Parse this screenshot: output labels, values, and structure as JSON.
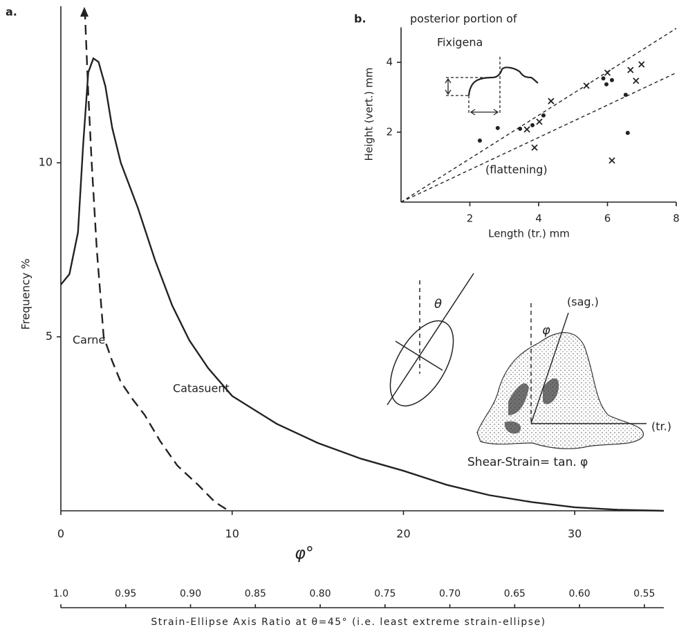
{
  "chart_data": [
    {
      "type": "line",
      "panel": "a.",
      "x_label": "φ°",
      "y_label": "Frequency %",
      "xlim": [
        0,
        35.2
      ],
      "ylim": [
        0,
        14.5
      ],
      "xticks": [
        0,
        10,
        20,
        30
      ],
      "yticks": [
        5,
        10
      ],
      "series": [
        {
          "name": "Carne",
          "color": "#222",
          "dash": true,
          "x": [
            1.4,
            1.6,
            1.8,
            2.1,
            2.5,
            3.0,
            3.5,
            4.2,
            4.9,
            5.8,
            6.8,
            8.0,
            9.0,
            9.8
          ],
          "values": [
            14.4,
            12.0,
            10.0,
            7.5,
            5.0,
            4.3,
            3.7,
            3.2,
            2.75,
            2.0,
            1.3,
            0.75,
            0.25,
            0
          ]
        },
        {
          "name": "Catasuent",
          "color": "#222",
          "dash": false,
          "x": [
            0,
            0.5,
            1.0,
            1.3,
            1.6,
            1.9,
            2.2,
            2.6,
            3.0,
            3.5,
            4.5,
            5.5,
            6.5,
            7.5,
            8.6,
            10,
            12.6,
            15,
            17.5,
            20,
            22.5,
            25,
            27.5,
            30,
            32.5,
            35.2
          ],
          "values": [
            6.5,
            6.8,
            8.0,
            10.5,
            12.6,
            13.0,
            12.9,
            12.2,
            11.0,
            10.0,
            8.7,
            7.2,
            5.9,
            4.9,
            4.1,
            3.3,
            2.5,
            1.95,
            1.5,
            1.15,
            0.75,
            0.45,
            0.25,
            0.1,
            0.03,
            0
          ]
        }
      ],
      "x2_label": "Strain-Ellipse Axis Ratio at θ=45°  (i.e. least extreme strain-ellipse)",
      "x2lim": [
        1.0,
        0.535
      ],
      "x2ticks": [
        {
          "value": 1,
          "label": "1.0"
        },
        0.95,
        {
          "value": 0.9,
          "label": "0.90"
        },
        0.85,
        {
          "value": 0.8,
          "label": "0.80"
        },
        0.75,
        {
          "value": 0.7,
          "label": "0.70"
        },
        0.65,
        {
          "value": 0.6,
          "label": "0.60"
        },
        0.55
      ],
      "annotations": [
        "θ",
        "φ",
        "(sag.)",
        "(tr.)",
        "Shear-Strain= tan. φ"
      ]
    },
    {
      "type": "scatter",
      "panel": "b.",
      "title": "posterior portion of",
      "x_label": "Length (tr.) mm",
      "y_label": "Height (vert.) mm",
      "xlim": [
        0,
        8
      ],
      "ylim": [
        0,
        5
      ],
      "xticks": [
        2,
        4,
        6,
        8
      ],
      "yticks": [
        2,
        4
      ],
      "series": [
        {
          "marker": "dot",
          "color": "#222",
          "x": [
            2.29,
            2.81,
            3.46,
            3.82,
            4.14,
            5.88,
            5.97,
            6.13,
            6.53,
            6.59
          ],
          "values": [
            1.76,
            2.12,
            2.1,
            2.2,
            2.48,
            3.54,
            3.37,
            3.49,
            3.07,
            1.98
          ]
        },
        {
          "marker": "cross",
          "color": "#222",
          "x": [
            3.66,
            4.02,
            4.36,
            3.88,
            5.39,
            6.0,
            6.67,
            6.83,
            6.99,
            6.13
          ],
          "values": [
            2.08,
            2.3,
            2.89,
            1.56,
            3.33,
            3.7,
            3.78,
            3.47,
            3.94,
            1.19
          ]
        }
      ],
      "reference_lines": [
        {
          "x": [
            0,
            8
          ],
          "values": [
            0,
            4.97
          ]
        },
        {
          "x": [
            0,
            8
          ],
          "values": [
            0,
            3.7
          ]
        }
      ],
      "annotations": [
        "Fixigena",
        "(flattening)"
      ]
    }
  ]
}
